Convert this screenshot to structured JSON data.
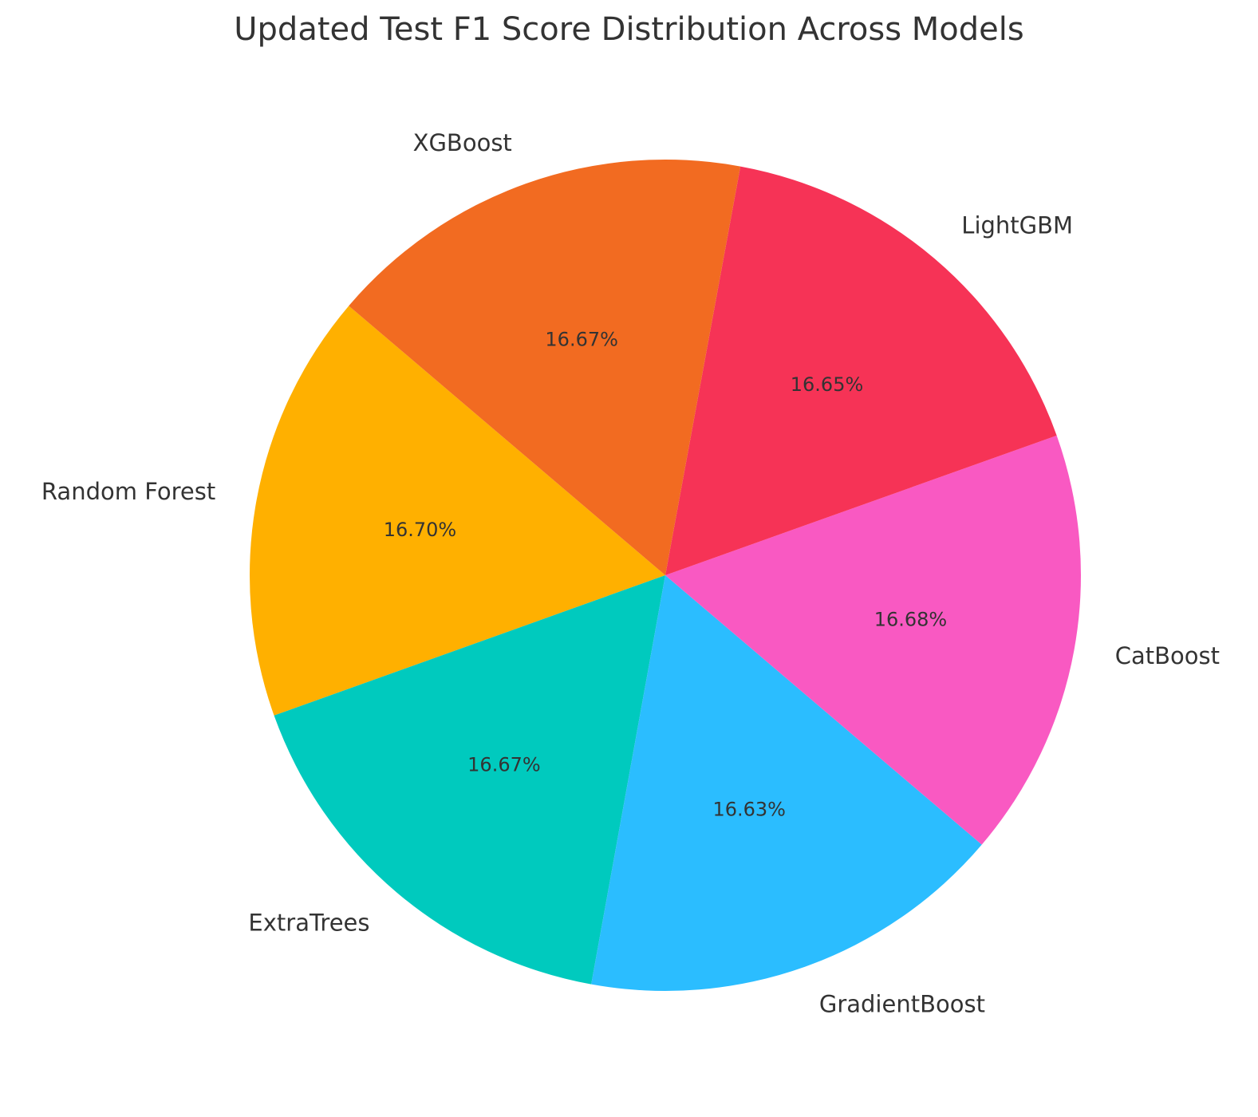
{
  "chart_data": {
    "type": "pie",
    "title": "Updated Test F1 Score Distribution Across Models",
    "slices": [
      {
        "label": "Random Forest",
        "percent_label": "16.70%",
        "value": 16.7,
        "color": "#FFB000"
      },
      {
        "label": "ExtraTrees",
        "percent_label": "16.67%",
        "value": 16.67,
        "color": "#00CABE"
      },
      {
        "label": "GradientBoost",
        "percent_label": "16.63%",
        "value": 16.63,
        "color": "#2BBDFF"
      },
      {
        "label": "CatBoost",
        "percent_label": "16.68%",
        "value": 16.68,
        "color": "#F959C2"
      },
      {
        "label": "LightGBM",
        "percent_label": "16.65%",
        "value": 16.65,
        "color": "#F63356"
      },
      {
        "label": "XGBoost",
        "percent_label": "16.67%",
        "value": 16.67,
        "color": "#F26B21"
      }
    ]
  }
}
